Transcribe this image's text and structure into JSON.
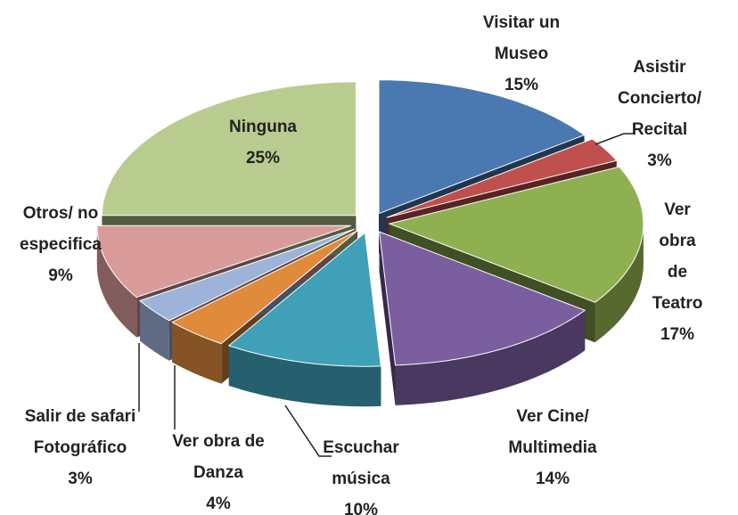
{
  "chart_data": {
    "type": "pie3d",
    "categories": [
      "Visitar un\nMuseo",
      "Asistir\nConcierto/\nRecital",
      "Ver obra de\nTeatro",
      "Ver Cine/\nMultimedia",
      "Escuchar\nmúsica",
      "Ver obra de\nDanza",
      "Salir de safari\nFotográfico",
      "Otros/ no\nespecifica",
      "Ninguna"
    ],
    "values": [
      15,
      3,
      17,
      14,
      10,
      4,
      3,
      9,
      25
    ],
    "value_labels": [
      "15%",
      "3%",
      "17%",
      "14%",
      "10%",
      "4%",
      "3%",
      "9%",
      "25%"
    ],
    "colors": [
      "#4a78b0",
      "#c0504d",
      "#8fb050",
      "#7b5ea0",
      "#3fa0b8",
      "#e08a3c",
      "#9db3d9",
      "#d99a9a",
      "#b9cc8f"
    ]
  }
}
